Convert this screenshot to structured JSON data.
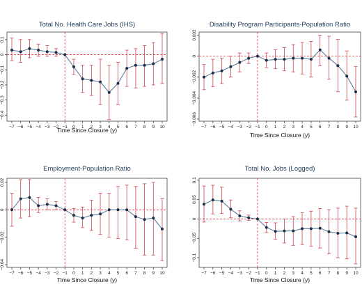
{
  "chart_data": [
    {
      "type": "line",
      "title": "Total No. Health Care Jobs (IHS)",
      "xlabel": "Time Since Closure (y)",
      "ylabel": "",
      "x": [
        -7,
        -6,
        -5,
        -4,
        -3,
        -2,
        -1,
        0,
        1,
        2,
        3,
        4,
        5,
        6,
        7,
        8,
        9,
        10
      ],
      "xticks": [
        "−7",
        "−6",
        "−5",
        "−4",
        "−3",
        "−2",
        "−1",
        "0",
        "1",
        "2",
        "3",
        "4",
        "5",
        "6",
        "7",
        "8",
        "9",
        "10"
      ],
      "ylim": [
        -0.44,
        0.15
      ],
      "yticks": [
        0.1,
        0,
        -0.1,
        -0.2,
        -0.3,
        -0.4
      ],
      "ytick_labels": [
        "0.1",
        "0",
        "−0.1",
        "−0.2",
        "−0.3",
        "−0.4"
      ],
      "event_x": -1,
      "series": [
        {
          "values": [
            0.03,
            0.02,
            0.04,
            0.03,
            0.02,
            0.015,
            0.0,
            -0.08,
            -0.16,
            -0.17,
            -0.18,
            -0.25,
            -0.19,
            -0.09,
            -0.07,
            -0.07,
            -0.06,
            -0.03
          ],
          "ci_low": [
            -0.04,
            -0.05,
            -0.02,
            -0.01,
            -0.01,
            -0.01,
            0.0,
            -0.13,
            -0.25,
            -0.27,
            -0.33,
            -0.43,
            -0.33,
            -0.21,
            -0.22,
            -0.21,
            -0.2,
            -0.19
          ],
          "ci_high": [
            0.11,
            0.1,
            0.1,
            0.07,
            0.06,
            0.04,
            0.0,
            -0.03,
            -0.07,
            -0.07,
            -0.03,
            -0.07,
            -0.05,
            0.03,
            0.04,
            0.06,
            0.08,
            0.14
          ]
        }
      ]
    },
    {
      "type": "line",
      "title": "Disability Program Participants-Population Ratio",
      "xlabel": "Time Since Closure (y)",
      "ylabel": "",
      "x": [
        -7,
        -6,
        -5,
        -4,
        -3,
        -2,
        -1,
        0,
        1,
        2,
        3,
        4,
        5,
        6,
        7,
        8,
        9,
        10
      ],
      "xticks": [
        "−7",
        "−6",
        "−5",
        "−4",
        "−3",
        "−2",
        "−1",
        "0",
        "1",
        "2",
        "3",
        "4",
        "5",
        "6",
        "7",
        "8",
        "9",
        "10"
      ],
      "ylim": [
        -0.0062,
        0.0023
      ],
      "yticks": [
        0.002,
        0,
        -0.002,
        -0.004,
        -0.006
      ],
      "ytick_labels": [
        "0.002",
        "0",
        "−0.002",
        "−0.004",
        "−0.006"
      ],
      "event_x": -1,
      "series": [
        {
          "values": [
            -0.002,
            -0.0016,
            -0.0014,
            -0.001,
            -0.0006,
            -0.0002,
            0.0,
            -0.0004,
            -0.0003,
            -0.0003,
            -0.0002,
            -0.0002,
            -0.0003,
            0.0006,
            -0.0002,
            -0.0009,
            -0.0019,
            -0.0034
          ],
          "ci_low": [
            -0.0032,
            -0.0029,
            -0.0026,
            -0.002,
            -0.0015,
            -0.0007,
            0.0,
            -0.0011,
            -0.0012,
            -0.0014,
            -0.0015,
            -0.0017,
            -0.002,
            -0.0009,
            -0.0022,
            -0.0034,
            -0.0042,
            -0.0058
          ],
          "ci_high": [
            -0.0008,
            -0.0003,
            -0.0002,
            0.0,
            0.0003,
            0.0003,
            0.0,
            0.0003,
            0.0006,
            0.0008,
            0.0011,
            0.0013,
            0.0014,
            0.002,
            0.0019,
            0.0016,
            0.0005,
            -0.001
          ]
        }
      ]
    },
    {
      "type": "line",
      "title": "Employment-Population Ratio",
      "xlabel": "Time Since Closure (y)",
      "ylabel": "",
      "x": [
        -7,
        -6,
        -5,
        -4,
        -3,
        -2,
        -1,
        0,
        1,
        2,
        3,
        4,
        5,
        6,
        7,
        8,
        9,
        10
      ],
      "xticks": [
        "−7",
        "−6",
        "−5",
        "−4",
        "−3",
        "−2",
        "−1",
        "0",
        "1",
        "2",
        "3",
        "4",
        "5",
        "6",
        "7",
        "8",
        "9",
        "10"
      ],
      "ylim": [
        -0.042,
        0.023
      ],
      "yticks": [
        0.02,
        0,
        -0.02,
        -0.04
      ],
      "ytick_labels": [
        "0.02",
        "0",
        "−0.02",
        "−0.04"
      ],
      "event_x": -1,
      "series": [
        {
          "values": [
            0.0,
            0.008,
            0.009,
            0.003,
            0.004,
            0.003,
            0.0,
            -0.004,
            -0.006,
            -0.004,
            -0.003,
            0.0,
            0.0,
            0.0,
            -0.005,
            -0.007,
            -0.006,
            -0.014
          ],
          "ci_low": [
            -0.012,
            -0.006,
            -0.005,
            -0.002,
            0.0,
            0.0,
            0.0,
            -0.009,
            -0.013,
            -0.015,
            -0.018,
            -0.02,
            -0.021,
            -0.022,
            -0.028,
            -0.033,
            -0.033,
            -0.037
          ],
          "ci_high": [
            0.012,
            0.022,
            0.022,
            0.009,
            0.008,
            0.006,
            0.0,
            0.001,
            0.002,
            0.007,
            0.012,
            0.012,
            0.017,
            0.018,
            0.017,
            0.019,
            0.02,
            0.008
          ]
        }
      ]
    },
    {
      "type": "line",
      "title": "Total No. Jobs (Logged)",
      "xlabel": "Time Since Closure (y)",
      "ylabel": "",
      "x": [
        -7,
        -6,
        -5,
        -4,
        -3,
        -2,
        -1,
        0,
        1,
        2,
        3,
        4,
        5,
        6,
        7,
        8,
        9,
        10
      ],
      "xticks": [
        "−7",
        "−6",
        "−5",
        "−4",
        "−3",
        "−2",
        "−1",
        "0",
        "1",
        "2",
        "3",
        "4",
        "5",
        "6",
        "7",
        "8",
        "9",
        "10"
      ],
      "ylim": [
        -0.125,
        0.105
      ],
      "yticks": [
        0.1,
        0.05,
        0,
        -0.05,
        -0.1
      ],
      "ytick_labels": [
        "0.1",
        "0.05",
        "0",
        "−0.05",
        "−0.1"
      ],
      "event_x": -1,
      "series": [
        {
          "values": [
            0.038,
            0.049,
            0.046,
            0.025,
            0.008,
            0.003,
            0.0,
            -0.022,
            -0.032,
            -0.031,
            -0.031,
            -0.025,
            -0.025,
            -0.024,
            -0.033,
            -0.037,
            -0.036,
            -0.046
          ],
          "ci_low": [
            -0.008,
            0.013,
            0.014,
            0.003,
            -0.005,
            -0.004,
            0.0,
            -0.035,
            -0.052,
            -0.062,
            -0.068,
            -0.066,
            -0.07,
            -0.075,
            -0.09,
            -0.1,
            -0.103,
            -0.116
          ],
          "ci_high": [
            0.085,
            0.087,
            0.082,
            0.049,
            0.021,
            0.01,
            0.0,
            -0.009,
            -0.01,
            0.0,
            0.006,
            0.016,
            0.02,
            0.027,
            0.024,
            0.028,
            0.033,
            0.028
          ]
        }
      ]
    }
  ]
}
